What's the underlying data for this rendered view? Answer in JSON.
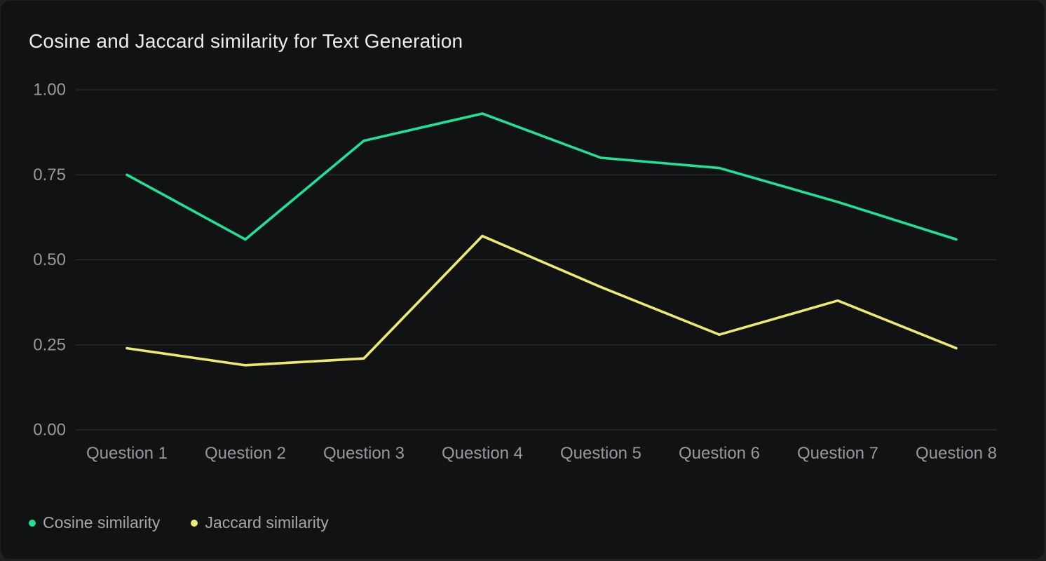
{
  "colors": {
    "page_background": "#1f2021",
    "card_background": "#111214",
    "grid": "#303133",
    "tick_text": "#97989b",
    "title_text": "#ececec",
    "legend_text": "#a6a7a9",
    "cosine_line": "#1ee394",
    "jaccard_line": "#edea6f"
  },
  "chart_data": {
    "type": "line",
    "title": "Cosine and Jaccard similarity for Text Generation",
    "categories": [
      "Question 1",
      "Question 2",
      "Question 3",
      "Question 4",
      "Question 5",
      "Question 6",
      "Question 7",
      "Question 8"
    ],
    "series": [
      {
        "name": "Cosine similarity",
        "color": "#1ee394",
        "values": [
          0.75,
          0.56,
          0.85,
          0.93,
          0.8,
          0.77,
          0.67,
          0.56
        ]
      },
      {
        "name": "Jaccard similarity",
        "color": "#edea6f",
        "values": [
          0.24,
          0.19,
          0.21,
          0.57,
          0.42,
          0.28,
          0.38,
          0.24
        ]
      }
    ],
    "yticks": [
      {
        "label": "1.00",
        "value": 1.0
      },
      {
        "label": "0.75",
        "value": 0.75
      },
      {
        "label": "0.50",
        "value": 0.5
      },
      {
        "label": "0.25",
        "value": 0.25
      },
      {
        "label": "0.00",
        "value": 0.0
      }
    ],
    "ylim": [
      0,
      1
    ],
    "xlabel": "",
    "ylabel": "",
    "grid": "horizontal",
    "legend_position": "bottom-left"
  }
}
